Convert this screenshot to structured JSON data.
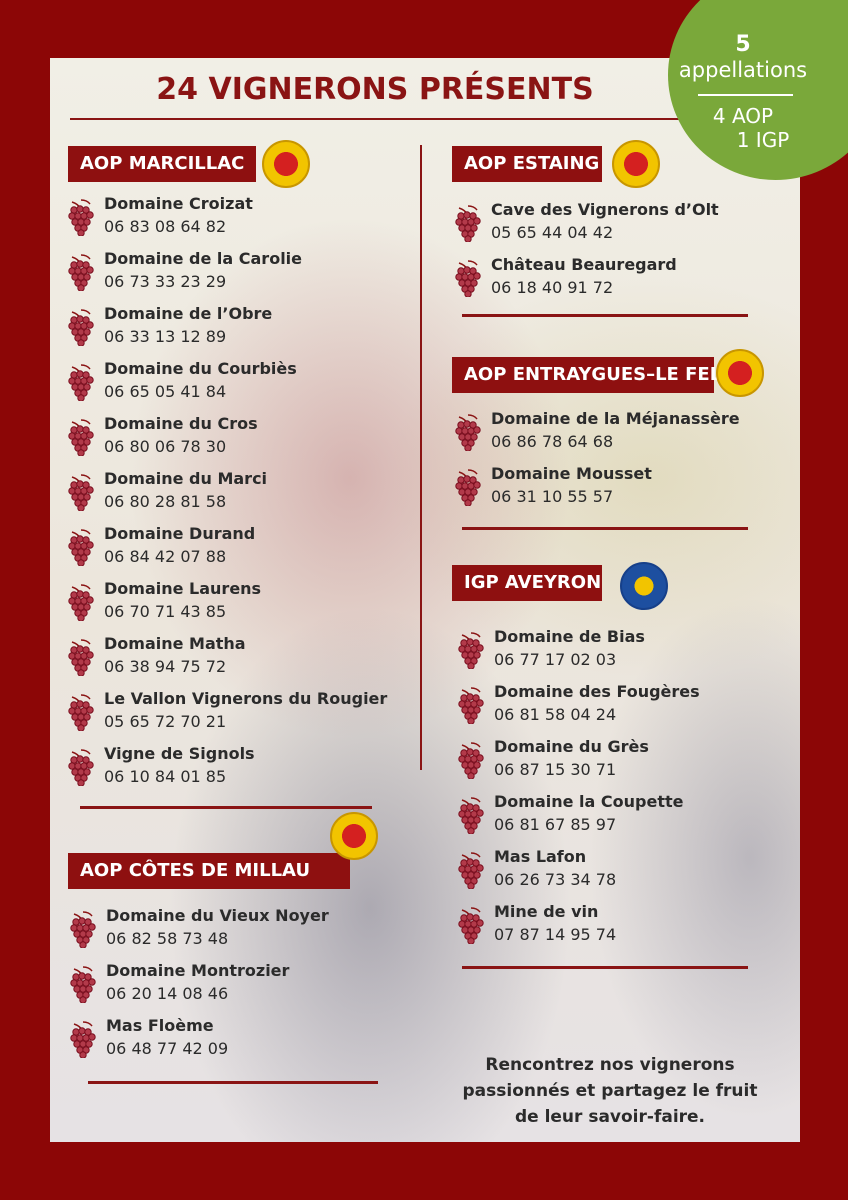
{
  "title": "24 VIGNERONS PRÉSENTS",
  "badge": {
    "count": "5",
    "label": "appellations",
    "aop": "4 AOP",
    "igp": "1 IGP",
    "color": "#7aa83a"
  },
  "colors": {
    "frame": "#8c0606",
    "accent": "#8e1010"
  },
  "sections": [
    {
      "title": "AOP MARCILLAC",
      "seal": "aop-seal",
      "producers": [
        {
          "name": "Domaine Croizat",
          "phone": "06 83 08 64 82"
        },
        {
          "name": "Domaine de la Carolie",
          "phone": "06 73 33 23 29"
        },
        {
          "name": "Domaine de l’Obre",
          "phone": "06 33 13 12 89"
        },
        {
          "name": "Domaine du Courbiès",
          "phone": "06 65 05 41 84"
        },
        {
          "name": "Domaine du Cros",
          "phone": "06 80 06 78 30"
        },
        {
          "name": "Domaine du Marci",
          "phone": "06 80 28 81 58"
        },
        {
          "name": "Domaine Durand",
          "phone": "06 84 42 07 88"
        },
        {
          "name": "Domaine Laurens",
          "phone": "06 70 71 43 85"
        },
        {
          "name": "Domaine Matha",
          "phone": "06 38 94 75 72"
        },
        {
          "name": "Le Vallon Vignerons du Rougier",
          "phone": "05 65 72 70 21"
        },
        {
          "name": "Vigne de Signols",
          "phone": "06 10 84 01 85"
        }
      ]
    },
    {
      "title": "AOP CÔTES DE MILLAU",
      "seal": "aop-seal",
      "producers": [
        {
          "name": "Domaine du Vieux Noyer",
          "phone": "06 82 58 73 48"
        },
        {
          "name": "Domaine Montrozier",
          "phone": "06 20 14 08 46"
        },
        {
          "name": "Mas Floème",
          "phone": "06 48 77 42 09"
        }
      ]
    },
    {
      "title": "AOP ESTAING",
      "seal": "aop-seal",
      "producers": [
        {
          "name": "Cave des Vignerons d’Olt",
          "phone": "05 65 44 04 42"
        },
        {
          "name": "Château Beauregard",
          "phone": "06 18 40 91 72"
        }
      ]
    },
    {
      "title": "AOP ENTRAYGUES–LE FEL",
      "seal": "aop-seal",
      "producers": [
        {
          "name": "Domaine de la Méjanassère",
          "phone": "06 86 78 64 68"
        },
        {
          "name": "Domaine Mousset",
          "phone": "06 31 10 55 57"
        }
      ]
    },
    {
      "title": "IGP AVEYRON",
      "seal": "igp-seal",
      "producers": [
        {
          "name": "Domaine de Bias",
          "phone": "06 77 17 02 03"
        },
        {
          "name": "Domaine des Fougères",
          "phone": "06 81 58 04 24"
        },
        {
          "name": "Domaine du Grès",
          "phone": "06 87 15 30 71"
        },
        {
          "name": "Domaine la Coupette",
          "phone": "06 81 67 85 97"
        },
        {
          "name": "Mas Lafon",
          "phone": "06 26 73 34 78"
        },
        {
          "name": "Mine de vin",
          "phone": "07 87 14 95 74"
        }
      ]
    }
  ],
  "closing": "Rencontrez nos vignerons passionnés et partagez le fruit de leur savoir-faire."
}
